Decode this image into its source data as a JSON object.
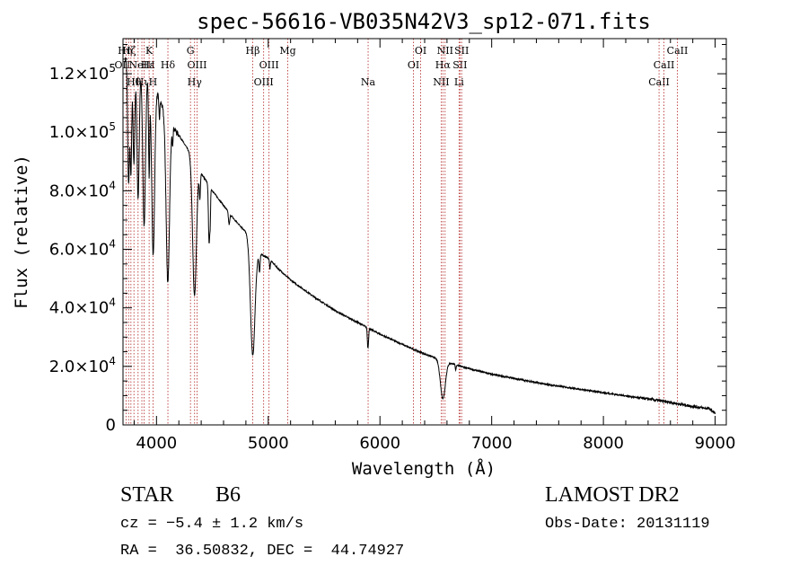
{
  "chart_data": {
    "type": "line",
    "title": "spec-56616-VB035N42V3_sp12-071.fits",
    "xlabel": "Wavelength (Å)",
    "ylabel": "Flux (relative)",
    "xlim": [
      3700,
      9100
    ],
    "ylim": [
      0,
      132000
    ],
    "xticks": [
      {
        "v": 4000,
        "label": "4000"
      },
      {
        "v": 5000,
        "label": "5000"
      },
      {
        "v": 6000,
        "label": "6000"
      },
      {
        "v": 7000,
        "label": "7000"
      },
      {
        "v": 8000,
        "label": "8000"
      },
      {
        "v": 9000,
        "label": "9000"
      }
    ],
    "yticks": [
      {
        "v": 0,
        "m": "0",
        "e": ""
      },
      {
        "v": 20000,
        "m": "2.0×10",
        "e": "4"
      },
      {
        "v": 40000,
        "m": "4.0×10",
        "e": "4"
      },
      {
        "v": 60000,
        "m": "6.0×10",
        "e": "4"
      },
      {
        "v": 80000,
        "m": "8.0×10",
        "e": "4"
      },
      {
        "v": 100000,
        "m": "1.0×10",
        "e": "5"
      },
      {
        "v": 120000,
        "m": "1.2×10",
        "e": "5"
      }
    ],
    "continuum": {
      "x": [
        3720,
        3800,
        3900,
        4000,
        4100,
        4200,
        4300,
        4400,
        4500,
        4600,
        4700,
        4800,
        4900,
        5000,
        5100,
        5200,
        5400,
        5600,
        5800,
        6000,
        6200,
        6400,
        6600,
        6800,
        7000,
        7500,
        8000,
        8500,
        8700,
        8800,
        8950,
        9000
      ],
      "y": [
        125000,
        124000,
        120000,
        114000,
        104000,
        99000,
        93000,
        86000,
        80000,
        75000,
        70000,
        66000,
        59000,
        57000,
        53000,
        49500,
        44000,
        39000,
        35000,
        31000,
        27500,
        24200,
        21500,
        19200,
        17300,
        13800,
        11000,
        8300,
        7000,
        6300,
        5500,
        4000
      ]
    },
    "absorption": [
      {
        "x": 3750,
        "depth": 42000,
        "w": 8
      },
      {
        "x": 3771,
        "depth": 38000,
        "w": 7
      },
      {
        "x": 3798,
        "depth": 35000,
        "w": 8
      },
      {
        "x": 3835,
        "depth": 45000,
        "w": 10
      },
      {
        "x": 3889,
        "depth": 52000,
        "w": 12
      },
      {
        "x": 3934,
        "depth": 32000,
        "w": 5
      },
      {
        "x": 3970,
        "depth": 58000,
        "w": 13
      },
      {
        "x": 4026,
        "depth": 7000,
        "w": 4
      },
      {
        "x": 4101,
        "depth": 55000,
        "w": 15
      },
      {
        "x": 4144,
        "depth": 5000,
        "w": 4
      },
      {
        "x": 4340,
        "depth": 46000,
        "w": 17
      },
      {
        "x": 4388,
        "depth": 9000,
        "w": 5
      },
      {
        "x": 4471,
        "depth": 20000,
        "w": 6
      },
      {
        "x": 4481,
        "depth": 9000,
        "w": 3
      },
      {
        "x": 4650,
        "depth": 4000,
        "w": 6
      },
      {
        "x": 4861,
        "depth": 38000,
        "w": 20
      },
      {
        "x": 4922,
        "depth": 6000,
        "w": 5
      },
      {
        "x": 5015,
        "depth": 3000,
        "w": 4
      },
      {
        "x": 5890,
        "depth": 5000,
        "w": 4
      },
      {
        "x": 5896,
        "depth": 4000,
        "w": 4
      },
      {
        "x": 6563,
        "depth": 13000,
        "w": 22
      },
      {
        "x": 6678,
        "depth": 2000,
        "w": 4
      }
    ],
    "lines": [
      {
        "x": 3727,
        "label": "OII",
        "row": 2,
        "shift": -4
      },
      {
        "x": 3750,
        "label": "Hη",
        "row": 1,
        "shift": -4
      },
      {
        "x": 3771,
        "label": "Hζ",
        "row": 1,
        "shift": -2
      },
      {
        "x": 3798,
        "label": "Hθ",
        "row": 3,
        "shift": 0
      },
      {
        "x": 3835,
        "label": "Hι",
        "row": 3,
        "shift": 4
      },
      {
        "x": 3869,
        "label": "NeIII",
        "row": 2,
        "shift": 0
      },
      {
        "x": 3889,
        "label": "Hε",
        "row": 2,
        "shift": 4
      },
      {
        "x": 3934,
        "label": "K",
        "row": 1,
        "shift": 0
      },
      {
        "x": 3969,
        "label": "H",
        "row": 3,
        "shift": 0
      },
      {
        "x": 4102,
        "label": "Hδ",
        "row": 2,
        "shift": 0
      },
      {
        "x": 4304,
        "label": "G",
        "row": 1,
        "shift": 0
      },
      {
        "x": 4341,
        "label": "Hγ",
        "row": 3,
        "shift": 0
      },
      {
        "x": 4363,
        "label": "OIII",
        "row": 2,
        "shift": 0
      },
      {
        "x": 4861,
        "label": "Hβ",
        "row": 1,
        "shift": 0
      },
      {
        "x": 4959,
        "label": "OIII",
        "row": 3,
        "shift": 0
      },
      {
        "x": 5007,
        "label": "OIII",
        "row": 2,
        "shift": 0
      },
      {
        "x": 5175,
        "label": "Mg",
        "row": 1,
        "shift": 0
      },
      {
        "x": 5894,
        "label": "Na",
        "row": 3,
        "shift": 0
      },
      {
        "x": 6300,
        "label": "OI",
        "row": 2,
        "shift": 0
      },
      {
        "x": 6364,
        "label": "OI",
        "row": 1,
        "shift": 0
      },
      {
        "x": 6548,
        "label": "NII",
        "row": 3,
        "shift": 0
      },
      {
        "x": 6563,
        "label": "Hα",
        "row": 2,
        "shift": 0
      },
      {
        "x": 6583,
        "label": "NII",
        "row": 1,
        "shift": 0
      },
      {
        "x": 6716,
        "label": "SII",
        "row": 2,
        "shift": 0
      },
      {
        "x": 6731,
        "label": "SII",
        "row": 1,
        "shift": 0
      },
      {
        "x": 6708,
        "label": "Li",
        "row": 3,
        "shift": 0
      },
      {
        "x": 8498,
        "label": "CaII",
        "row": 3,
        "shift": 0
      },
      {
        "x": 8542,
        "label": "CaII",
        "row": 2,
        "shift": 0
      },
      {
        "x": 8662,
        "label": "CaII",
        "row": 1,
        "shift": 0
      }
    ]
  },
  "info": {
    "class": "STAR",
    "subclass": "B6",
    "survey": "LAMOST DR2",
    "cz": "cz = −5.4 ± 1.2 km/s",
    "obs_date": "Obs-Date: 20131119",
    "coords": "RA =  36.50832, DEC =  44.74927"
  }
}
